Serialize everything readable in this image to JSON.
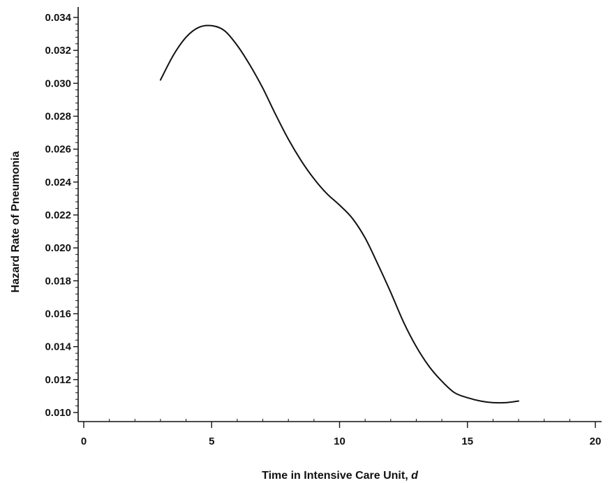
{
  "chart_data": {
    "type": "line",
    "xlabel": "Time in Intensive Care Unit, ",
    "xlabel_italic_suffix": "d",
    "ylabel": "Hazard Rate of Pneumonia",
    "xlim": [
      0,
      20
    ],
    "ylim": [
      0.01,
      0.034
    ],
    "x_ticks": [
      0,
      5,
      10,
      15,
      20
    ],
    "y_ticks": [
      0.01,
      0.012,
      0.014,
      0.016,
      0.018,
      0.02,
      0.022,
      0.024,
      0.026,
      0.028,
      0.03,
      0.032,
      0.034
    ],
    "x_tick_labels": [
      "0",
      "5",
      "10",
      "15",
      "20"
    ],
    "y_tick_labels": [
      "0.010",
      "0.012",
      "0.014",
      "0.016",
      "0.018",
      "0.020",
      "0.022",
      "0.024",
      "0.026",
      "0.028",
      "0.030",
      "0.032",
      "0.034"
    ],
    "grid": false,
    "series": [
      {
        "x": [
          3.0,
          3.5,
          4.0,
          4.5,
          5.0,
          5.5,
          6.0,
          6.5,
          7.0,
          7.5,
          8.0,
          8.5,
          9.0,
          9.5,
          10.0,
          10.5,
          11.0,
          11.5,
          12.0,
          12.5,
          13.0,
          13.5,
          14.0,
          14.5,
          15.0,
          15.5,
          16.0,
          16.5,
          17.0
        ],
        "y": [
          0.0302,
          0.0317,
          0.0328,
          0.0334,
          0.0335,
          0.0332,
          0.0323,
          0.0311,
          0.0297,
          0.0281,
          0.0266,
          0.0253,
          0.0242,
          0.0233,
          0.0226,
          0.0218,
          0.0206,
          0.019,
          0.0173,
          0.0155,
          0.014,
          0.0128,
          0.0119,
          0.0112,
          0.0109,
          0.0107,
          0.0106,
          0.0106,
          0.0107
        ]
      }
    ]
  }
}
